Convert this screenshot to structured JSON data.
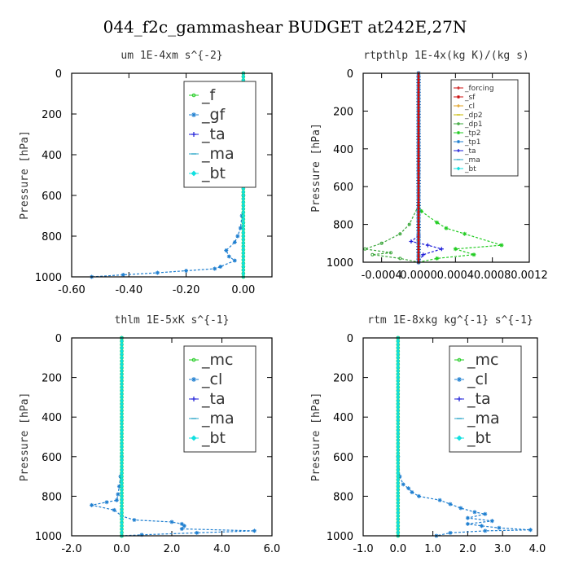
{
  "figure_title": "044_f2c_gammashear  BUDGET at242E,27N",
  "chart_data": [
    {
      "id": "um",
      "type": "line",
      "title": "um   1E-4xm s^{-2}",
      "ylabel": "Pressure [hPa]",
      "xlim": [
        -0.6,
        0.1
      ],
      "ylim": [
        1000,
        0
      ],
      "xticks": [
        -0.6,
        -0.4,
        -0.2,
        0.0
      ],
      "xtick_labels": [
        "-0.60",
        "-0.40",
        "-0.20",
        "0.00"
      ],
      "yticks": [
        0,
        200,
        400,
        600,
        800,
        1000
      ],
      "legend_position": "top-right",
      "legend_size": "large",
      "series": [
        {
          "name": "_f",
          "color": "#22cc22",
          "marker": "circle"
        },
        {
          "name": "_gf",
          "color": "#1f7fd0",
          "marker": "star"
        },
        {
          "name": "_ta",
          "color": "#1a1ad8",
          "marker": "plus"
        },
        {
          "name": "_ma",
          "color": "#2aa6c8",
          "marker": "dash"
        },
        {
          "name": "_bt",
          "color": "#11e0e0",
          "marker": "diamond"
        }
      ],
      "profiles": [
        {
          "series": "_gf",
          "points": [
            [
              0,
              0
            ],
            [
              0,
              600
            ],
            [
              -0.005,
              700
            ],
            [
              -0.01,
              760
            ],
            [
              -0.02,
              800
            ],
            [
              -0.03,
              830
            ],
            [
              -0.06,
              870
            ],
            [
              -0.05,
              900
            ],
            [
              -0.03,
              920
            ],
            [
              -0.08,
              950
            ],
            [
              -0.1,
              960
            ],
            [
              -0.2,
              970
            ],
            [
              -0.3,
              980
            ],
            [
              -0.42,
              990
            ],
            [
              -0.53,
              1000
            ]
          ]
        }
      ],
      "vertical": [
        "_f",
        "_bt"
      ]
    },
    {
      "id": "rtpthlp",
      "type": "line",
      "title": "rtpthlp  1E-4x(kg K)/(kg s)",
      "ylabel": "Pressure [hPa]",
      "xlim": [
        -0.0006,
        0.0012
      ],
      "ylim": [
        1000,
        0
      ],
      "xticks": [
        -0.0004,
        0.0,
        0.0004,
        0.0008,
        0.0012
      ],
      "xtick_labels": [
        "-0.0004",
        "0.0000",
        "0.0004",
        "0.0008",
        "0.0012"
      ],
      "yticks": [
        0,
        200,
        400,
        600,
        800,
        1000
      ],
      "legend_position": "top-right",
      "legend_size": "small",
      "series": [
        {
          "name": "_forcing",
          "color": "#cc1111",
          "marker": "plus"
        },
        {
          "name": "_sf",
          "color": "#cc1111",
          "marker": "star"
        },
        {
          "name": "_cl",
          "color": "#e0a020",
          "marker": "plus"
        },
        {
          "name": "_dp2",
          "color": "#c8b800",
          "marker": "dash"
        },
        {
          "name": "_dp1",
          "color": "#3aa63a",
          "marker": "circle"
        },
        {
          "name": "_tp2",
          "color": "#22cc22",
          "marker": "star"
        },
        {
          "name": "_tp1",
          "color": "#1f7fd0",
          "marker": "star"
        },
        {
          "name": "_ta",
          "color": "#1a1ad8",
          "marker": "plus"
        },
        {
          "name": "_ma",
          "color": "#2aa6c8",
          "marker": "dash"
        },
        {
          "name": "_bt",
          "color": "#11e0e0",
          "marker": "diamond"
        }
      ],
      "profiles": [
        {
          "series": "_tp2",
          "points": [
            [
              0,
              0
            ],
            [
              0,
              700
            ],
            [
              3e-05,
              730
            ],
            [
              0.0002,
              790
            ],
            [
              0.0003,
              820
            ],
            [
              0.0005,
              850
            ],
            [
              0.0009,
              910
            ],
            [
              0.0004,
              930
            ],
            [
              0.0006,
              960
            ],
            [
              0.0002,
              980
            ],
            [
              0,
              1000
            ]
          ]
        },
        {
          "series": "_dp1",
          "points": [
            [
              0,
              700
            ],
            [
              -0.0001,
              800
            ],
            [
              -0.0002,
              850
            ],
            [
              -0.0004,
              900
            ],
            [
              -0.00058,
              930
            ],
            [
              -0.0003,
              950
            ],
            [
              -0.0005,
              960
            ],
            [
              -0.0002,
              980
            ],
            [
              0,
              1000
            ]
          ]
        },
        {
          "series": "_ta",
          "points": [
            [
              0,
              860
            ],
            [
              -8e-05,
              890
            ],
            [
              0.0001,
              910
            ],
            [
              0.00025,
              930
            ],
            [
              5e-05,
              960
            ],
            [
              0,
              1000
            ]
          ]
        }
      ],
      "vertical": [
        "_tp1",
        "_forcing"
      ]
    },
    {
      "id": "thlm",
      "type": "line",
      "title": "thlm  1E-5xK s^{-1}",
      "ylabel": "Pressure [hPa]",
      "xlim": [
        -2.0,
        6.0
      ],
      "ylim": [
        1000,
        0
      ],
      "xticks": [
        -2.0,
        0.0,
        2.0,
        4.0,
        6.0
      ],
      "xtick_labels": [
        "-2.0",
        "0.0",
        "2.0",
        "4.0",
        "6.0"
      ],
      "yticks": [
        0,
        200,
        400,
        600,
        800,
        1000
      ],
      "legend_position": "top-right",
      "legend_size": "large",
      "series": [
        {
          "name": "_mc",
          "color": "#22cc22",
          "marker": "circle"
        },
        {
          "name": "_cl",
          "color": "#1f7fd0",
          "marker": "star"
        },
        {
          "name": "_ta",
          "color": "#1a1ad8",
          "marker": "plus"
        },
        {
          "name": "_ma",
          "color": "#2aa6c8",
          "marker": "dash"
        },
        {
          "name": "_bt",
          "color": "#11e0e0",
          "marker": "diamond"
        }
      ],
      "profiles": [
        {
          "series": "_cl",
          "points": [
            [
              0,
              0
            ],
            [
              0,
              600
            ],
            [
              -0.05,
              700
            ],
            [
              -0.1,
              750
            ],
            [
              -0.15,
              790
            ],
            [
              -0.2,
              820
            ],
            [
              -0.6,
              830
            ],
            [
              -1.2,
              845
            ],
            [
              -0.3,
              870
            ],
            [
              0,
              900
            ],
            [
              0.5,
              920
            ],
            [
              2.0,
              930
            ],
            [
              2.4,
              940
            ],
            [
              2.5,
              950
            ],
            [
              2.4,
              965
            ],
            [
              5.3,
              975
            ],
            [
              3.0,
              985
            ],
            [
              0.8,
              995
            ],
            [
              0,
              1000
            ]
          ]
        }
      ],
      "vertical": [
        "_mc",
        "_bt"
      ]
    },
    {
      "id": "rtm",
      "type": "line",
      "title": "rtm  1E-8xkg kg^{-1} s^{-1}",
      "ylabel": "Pressure [hPa]",
      "xlim": [
        -1.0,
        4.0
      ],
      "ylim": [
        1000,
        0
      ],
      "xticks": [
        -1.0,
        0.0,
        1.0,
        2.0,
        3.0,
        4.0
      ],
      "xtick_labels": [
        "-1.0",
        "0.0",
        "1.0",
        "2.0",
        "3.0",
        "4.0"
      ],
      "yticks": [
        0,
        200,
        400,
        600,
        800,
        1000
      ],
      "legend_position": "top-right",
      "legend_size": "large",
      "series": [
        {
          "name": "_mc",
          "color": "#22cc22",
          "marker": "circle"
        },
        {
          "name": "_cl",
          "color": "#1f7fd0",
          "marker": "star"
        },
        {
          "name": "_ta",
          "color": "#1a1ad8",
          "marker": "plus"
        },
        {
          "name": "_ma",
          "color": "#2aa6c8",
          "marker": "dash"
        },
        {
          "name": "_bt",
          "color": "#11e0e0",
          "marker": "diamond"
        }
      ],
      "profiles": [
        {
          "series": "_cl",
          "points": [
            [
              0,
              0
            ],
            [
              0,
              600
            ],
            [
              0.05,
              700
            ],
            [
              0.15,
              740
            ],
            [
              0.3,
              760
            ],
            [
              0.4,
              780
            ],
            [
              0.6,
              800
            ],
            [
              1.2,
              820
            ],
            [
              1.5,
              840
            ],
            [
              1.8,
              860
            ],
            [
              2.2,
              880
            ],
            [
              2.5,
              890
            ],
            [
              2.0,
              910
            ],
            [
              2.7,
              925
            ],
            [
              2.0,
              940
            ],
            [
              2.4,
              950
            ],
            [
              2.9,
              960
            ],
            [
              3.8,
              970
            ],
            [
              2.5,
              975
            ],
            [
              1.5,
              985
            ],
            [
              1.1,
              1000
            ]
          ]
        }
      ],
      "vertical": [
        "_mc",
        "_bt"
      ]
    }
  ]
}
